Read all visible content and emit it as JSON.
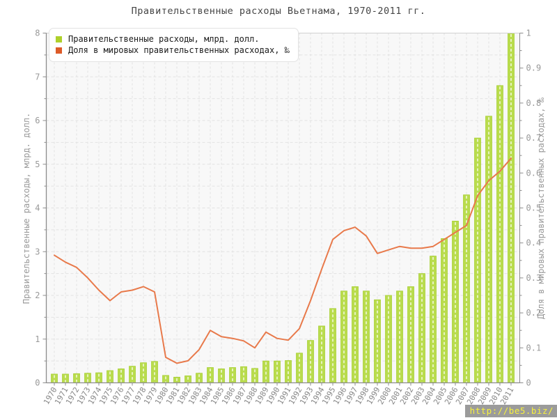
{
  "title": "Правительственные расходы Вьетнама, 1970-2011 гг.",
  "watermark": "http://be5.biz/",
  "colors": {
    "bar_fill": "#b9dc4d",
    "bar_edge": "#a6ce30",
    "bar_stripe": "#ffffff",
    "line": "#e8794a",
    "legend_green": "#aed02b",
    "legend_orange": "#dd5b28",
    "plot_bg": "#f8f8f8",
    "grid": "#e2e2e2",
    "axis": "#8c8c8c",
    "plot_border": "#d0d0d0",
    "tick_label_y": "#999999",
    "tick_label_x": "#888888",
    "title_text": "#454545"
  },
  "chart_data": {
    "type": "combo",
    "title": "Правительственные расходы Вьетнама, 1970-2011 гг.",
    "categories": [
      1970,
      1971,
      1972,
      1973,
      1974,
      1975,
      1976,
      1977,
      1978,
      1979,
      1980,
      1981,
      1982,
      1983,
      1984,
      1985,
      1986,
      1987,
      1988,
      1989,
      1990,
      1991,
      1992,
      1993,
      1994,
      1995,
      1996,
      1997,
      1998,
      1999,
      2000,
      2001,
      2002,
      2003,
      2004,
      2005,
      2006,
      2007,
      2008,
      2009,
      2010,
      2011
    ],
    "series": [
      {
        "name": "Правительственные расходы, млрд. долл.",
        "type": "bar",
        "axis": "left",
        "color": "#b9dc4d",
        "values": [
          0.2,
          0.2,
          0.21,
          0.22,
          0.23,
          0.28,
          0.32,
          0.38,
          0.46,
          0.49,
          0.17,
          0.13,
          0.16,
          0.22,
          0.35,
          0.32,
          0.35,
          0.37,
          0.33,
          0.5,
          0.5,
          0.51,
          0.68,
          0.97,
          1.3,
          1.7,
          2.1,
          2.2,
          2.1,
          1.9,
          2.0,
          2.1,
          2.2,
          2.5,
          2.9,
          3.3,
          3.7,
          4.3,
          5.6,
          6.1,
          6.8,
          8.0
        ]
      },
      {
        "name": "Доля в мировых правительственных расходах, ‰",
        "type": "line",
        "axis": "right",
        "color": "#e8794a",
        "values": [
          0.365,
          0.345,
          0.33,
          0.3,
          0.265,
          0.235,
          0.26,
          0.265,
          0.275,
          0.26,
          0.073,
          0.056,
          0.063,
          0.095,
          0.15,
          0.132,
          0.127,
          0.12,
          0.1,
          0.145,
          0.127,
          0.122,
          0.155,
          0.235,
          0.325,
          0.41,
          0.435,
          0.445,
          0.42,
          0.37,
          0.38,
          0.39,
          0.385,
          0.385,
          0.39,
          0.41,
          0.43,
          0.45,
          0.535,
          0.578,
          0.605,
          0.642
        ]
      }
    ],
    "left_axis": {
      "label": "Правительственные расходы, млрд. долл.",
      "min": 0,
      "max": 8,
      "tick_step": 1,
      "minor_step": 0.5
    },
    "right_axis": {
      "label": "Доля в мировых правительственных расходах, ‰",
      "min": 0,
      "max": 1,
      "tick_step": 0.1,
      "minor_step": 0.05
    },
    "grid": true,
    "legend_position": "top-left"
  }
}
